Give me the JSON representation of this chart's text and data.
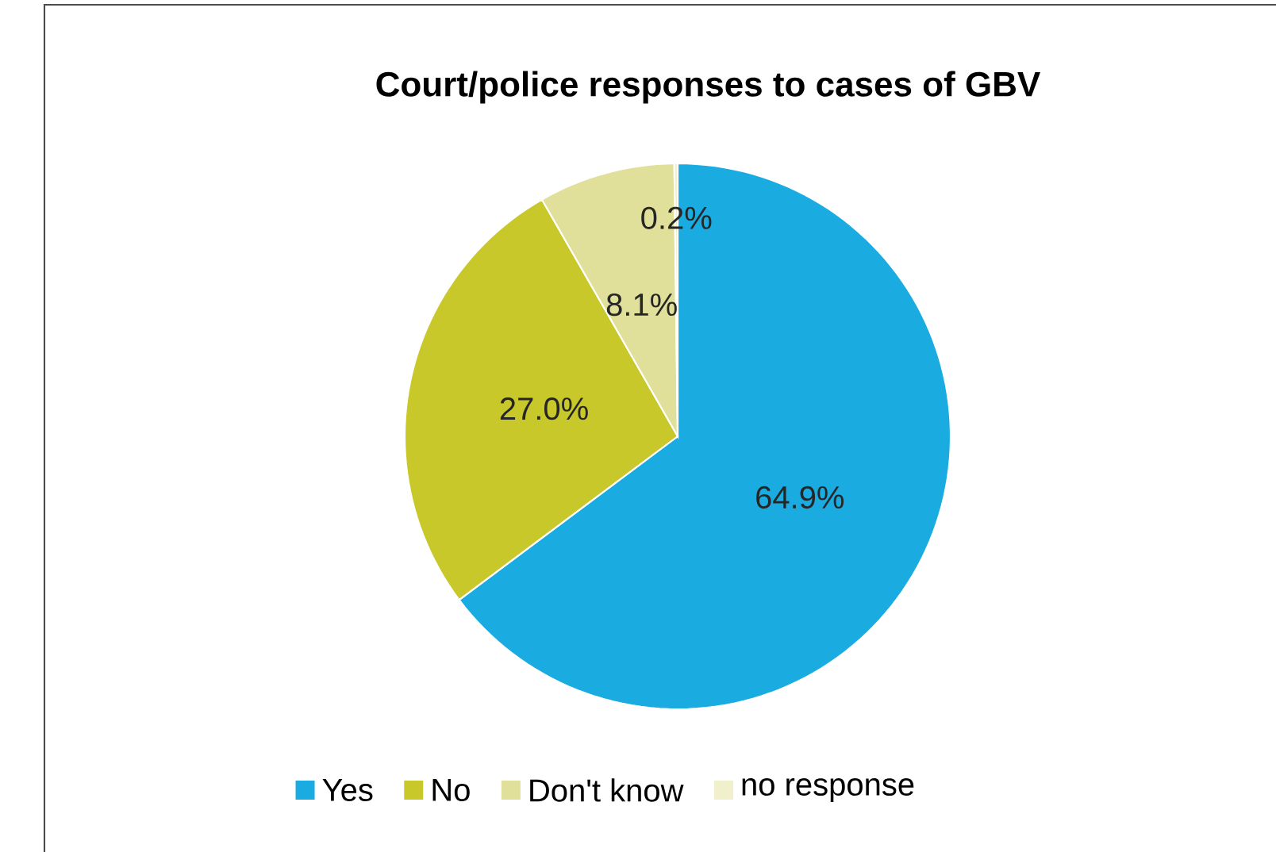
{
  "chart_data": {
    "type": "pie",
    "title": "Court/police responses to cases of GBV",
    "categories": [
      "Yes",
      "No",
      "Don't know",
      "no response"
    ],
    "values": [
      64.9,
      27.0,
      8.1,
      0.2
    ],
    "colors": [
      "#1aabe0",
      "#c8c82a",
      "#e0e09a",
      "#f0f0cc"
    ],
    "value_labels": [
      "64.9%",
      "27.0%",
      "8.1%",
      "0.2%"
    ],
    "legend": "bottom"
  }
}
